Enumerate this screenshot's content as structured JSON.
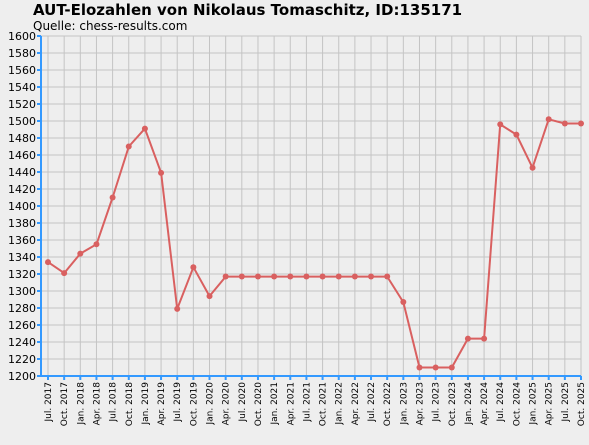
{
  "chart_data": {
    "type": "line",
    "title": "AUT-Elozahlen von Nikolaus Tomaschitz, ID:135171",
    "subtitle": "Quelle: chess-results.com",
    "xlabel": "",
    "ylabel": "",
    "ylim": [
      1200,
      1600
    ],
    "ytick_step": 20,
    "grid": true,
    "legend": "none",
    "colors": {
      "line": "#d96060",
      "marker": "#d96060",
      "axis": "#3399ff",
      "grid": "#c4c4c4",
      "background": "#eeeeee"
    },
    "x": [
      "Jul. 2017",
      "Oct. 2017",
      "Jan. 2018",
      "Apr. 2018",
      "Jul. 2018",
      "Oct. 2018",
      "Jan. 2019",
      "Apr. 2019",
      "Jul. 2019",
      "Oct. 2019",
      "Jan. 2020",
      "Apr. 2020",
      "Jul. 2020",
      "Oct. 2020",
      "Jan. 2021",
      "Apr. 2021",
      "Jul. 2021",
      "Oct. 2021",
      "Jan. 2022",
      "Apr. 2022",
      "Jul. 2022",
      "Oct. 2022",
      "Jan. 2023",
      "Apr. 2023",
      "Jul. 2023",
      "Oct. 2023",
      "Jan. 2024",
      "Apr. 2024",
      "Jul. 2024",
      "Oct. 2024",
      "Jan. 2025",
      "Apr. 2025",
      "Jul. 2025",
      "Oct. 2025"
    ],
    "values": [
      1334,
      1321,
      1344,
      1355,
      1410,
      1470,
      1491,
      1439,
      1279,
      1328,
      1294,
      1317,
      1317,
      1317,
      1317,
      1317,
      1317,
      1317,
      1317,
      1317,
      1317,
      1317,
      1287,
      1210,
      1210,
      1210,
      1244,
      1244,
      1496,
      1484,
      1445,
      1502,
      1497,
      1497
    ]
  }
}
